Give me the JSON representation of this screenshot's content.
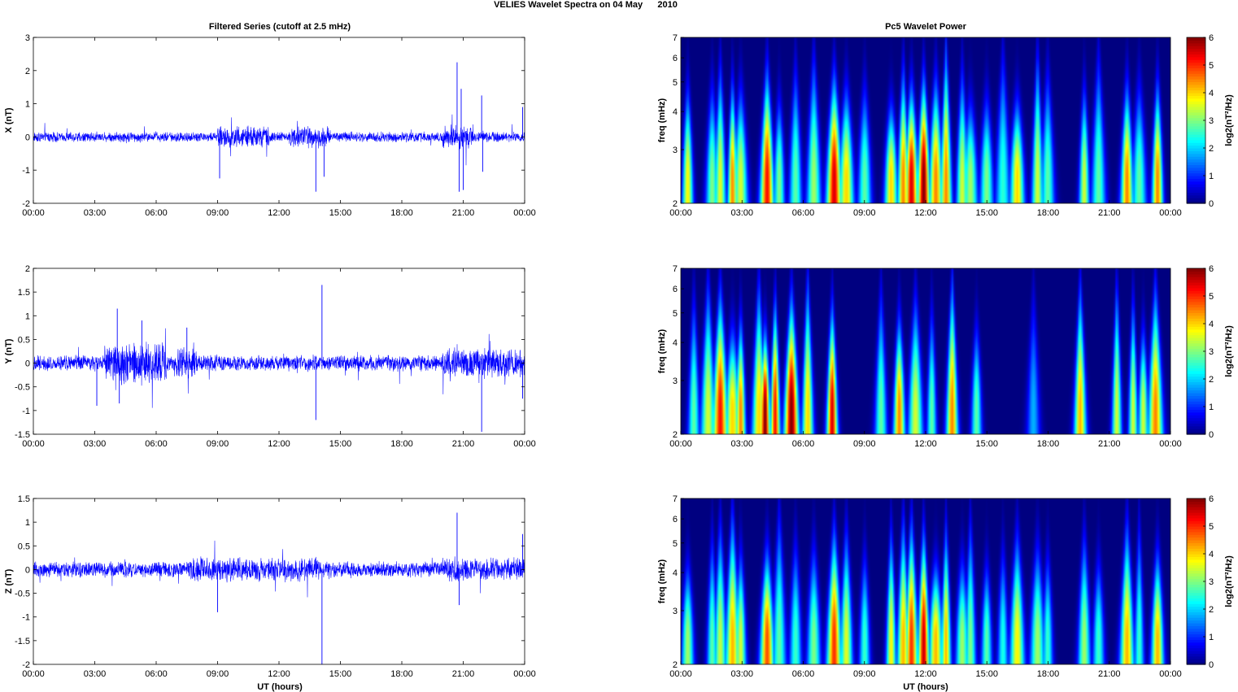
{
  "figure": {
    "suptitle": "VELIES Wavelet Spectra on 04 May      2010",
    "left_title": "Filtered Series (cutoff at 2.5 mHz)",
    "right_title": "Pc5 Wavelet Power",
    "xlabel": "UT (hours)"
  },
  "colors": {
    "trace": "#0000ff",
    "axes": "#000000",
    "background": "#ffffff",
    "jet_low": "#00007f",
    "jet_high": "#7f0000"
  },
  "chart_data": [
    {
      "type": "line",
      "id": "x-series",
      "ylabel": "X (nT)",
      "ylim": [
        -2,
        3
      ],
      "yticks": [
        "-2",
        "-1",
        "0",
        "1",
        "2",
        "3"
      ],
      "xlim": [
        0,
        24
      ],
      "xticks": [
        "00:00",
        "03:00",
        "06:00",
        "09:00",
        "12:00",
        "15:00",
        "18:00",
        "21:00",
        "00:00"
      ],
      "noise": {
        "base": 0.12,
        "bursts": [
          [
            9,
            11.5,
            0.25
          ],
          [
            12.5,
            14.5,
            0.25
          ],
          [
            20,
            21.5,
            0.3
          ]
        ]
      },
      "spikes": [
        [
          9.1,
          -1.25
        ],
        [
          13.8,
          -1.65
        ],
        [
          14.2,
          -1.2
        ],
        [
          20.7,
          2.25
        ],
        [
          20.8,
          -1.65
        ],
        [
          20.9,
          1.45
        ],
        [
          21.0,
          -1.6
        ],
        [
          21.9,
          1.25
        ],
        [
          21.95,
          -1.05
        ],
        [
          23.9,
          0.9
        ]
      ]
    },
    {
      "type": "line",
      "id": "y-series",
      "ylabel": "Y (nT)",
      "ylim": [
        -1.5,
        2
      ],
      "yticks": [
        "-1.5",
        "-1",
        "-0.5",
        "0",
        "0.5",
        "1",
        "1.5",
        "2"
      ],
      "xlim": [
        0,
        24
      ],
      "xticks": [
        "00:00",
        "03:00",
        "06:00",
        "09:00",
        "12:00",
        "15:00",
        "18:00",
        "21:00",
        "00:00"
      ],
      "noise": {
        "base": 0.13,
        "bursts": [
          [
            3.5,
            6.5,
            0.35
          ],
          [
            7,
            8,
            0.25
          ],
          [
            20,
            24,
            0.25
          ]
        ]
      },
      "spikes": [
        [
          3.1,
          -0.9
        ],
        [
          4.1,
          1.15
        ],
        [
          4.2,
          -0.85
        ],
        [
          5.3,
          0.9
        ],
        [
          7.5,
          0.75
        ],
        [
          13.8,
          -1.2
        ],
        [
          14.1,
          1.65
        ],
        [
          21.9,
          -1.45
        ],
        [
          23.9,
          -0.75
        ]
      ]
    },
    {
      "type": "line",
      "id": "z-series",
      "ylabel": "Z (nT)",
      "ylim": [
        -2,
        1.5
      ],
      "yticks": [
        "-2",
        "-1.5",
        "-1",
        "-0.5",
        "0",
        "0.5",
        "1",
        "1.5"
      ],
      "xlim": [
        0,
        24
      ],
      "xticks": [
        "00:00",
        "03:00",
        "06:00",
        "09:00",
        "12:00",
        "15:00",
        "18:00",
        "21:00",
        "00:00"
      ],
      "noise": {
        "base": 0.13,
        "bursts": [
          [
            7.5,
            14,
            0.2
          ],
          [
            20,
            24,
            0.2
          ]
        ]
      },
      "spikes": [
        [
          9.0,
          -0.9
        ],
        [
          14.1,
          -2.0
        ],
        [
          20.7,
          1.2
        ],
        [
          20.8,
          -0.75
        ],
        [
          23.9,
          0.75
        ]
      ]
    },
    {
      "type": "heatmap",
      "id": "x-wavelet",
      "ylabel": "freq (mHz)",
      "yscale": "log",
      "ylim": [
        2,
        7
      ],
      "yticks": [
        "2",
        "3",
        "4",
        "5",
        "6",
        "7"
      ],
      "xticks": [
        "00:00",
        "03:00",
        "06:00",
        "09:00",
        "12:00",
        "15:00",
        "18:00",
        "21:00",
        "00:00"
      ],
      "colorbar_label": "log2(nT²/Hz)",
      "colorbar_ticks": [
        "0",
        "1",
        "2",
        "3",
        "4",
        "5",
        "6"
      ],
      "clim": [
        0,
        6
      ],
      "blobs": [
        [
          0.3,
          3.8
        ],
        [
          1.5,
          3.0
        ],
        [
          1.9,
          3.6
        ],
        [
          2.5,
          4.5
        ],
        [
          2.9,
          3.5
        ],
        [
          4.2,
          5.2
        ],
        [
          4.8,
          3.0
        ],
        [
          5.6,
          2.8
        ],
        [
          6.5,
          3.2
        ],
        [
          7.5,
          5.5
        ],
        [
          8.1,
          4.0
        ],
        [
          9.0,
          2.8
        ],
        [
          10.3,
          4.0
        ],
        [
          10.9,
          4.5
        ],
        [
          11.3,
          5.5
        ],
        [
          11.9,
          6.0
        ],
        [
          12.5,
          4.5
        ],
        [
          13.0,
          4.5
        ],
        [
          13.8,
          3.5
        ],
        [
          14.2,
          3.2
        ],
        [
          15.0,
          3.0
        ],
        [
          15.8,
          2.5
        ],
        [
          16.5,
          4.0
        ],
        [
          17.5,
          3.5
        ],
        [
          18.0,
          2.8
        ],
        [
          19.8,
          3.5
        ],
        [
          20.5,
          2.8
        ],
        [
          21.9,
          4.5
        ],
        [
          22.5,
          2.8
        ],
        [
          23.4,
          4.5
        ]
      ]
    },
    {
      "type": "heatmap",
      "id": "y-wavelet",
      "ylabel": "freq (mHz)",
      "yscale": "log",
      "ylim": [
        2,
        7
      ],
      "yticks": [
        "2",
        "3",
        "4",
        "5",
        "6",
        "7"
      ],
      "xticks": [
        "00:00",
        "03:00",
        "06:00",
        "09:00",
        "12:00",
        "15:00",
        "18:00",
        "21:00",
        "00:00"
      ],
      "colorbar_label": "log2(nT²/Hz)",
      "colorbar_ticks": [
        "0",
        "1",
        "2",
        "3",
        "4",
        "5",
        "6"
      ],
      "clim": [
        0,
        6
      ],
      "blobs": [
        [
          0.6,
          2.8
        ],
        [
          1.3,
          3.5
        ],
        [
          1.9,
          5.2
        ],
        [
          2.5,
          4.0
        ],
        [
          2.9,
          4.5
        ],
        [
          3.8,
          4.0
        ],
        [
          4.1,
          6.0
        ],
        [
          4.6,
          5.2
        ],
        [
          5.4,
          6.0
        ],
        [
          6.2,
          4.0
        ],
        [
          7.4,
          5.5
        ],
        [
          9.8,
          2.8
        ],
        [
          10.7,
          4.5
        ],
        [
          11.5,
          3.5
        ],
        [
          12.3,
          2.8
        ],
        [
          13.3,
          4.5
        ],
        [
          14.5,
          2.8
        ],
        [
          17.3,
          1.8
        ],
        [
          19.6,
          4.2
        ],
        [
          21.4,
          3.5
        ],
        [
          22.2,
          3.5
        ],
        [
          22.7,
          3.5
        ],
        [
          23.3,
          4.5
        ]
      ]
    },
    {
      "type": "heatmap",
      "id": "z-wavelet",
      "ylabel": "freq (mHz)",
      "yscale": "log",
      "ylim": [
        2,
        7
      ],
      "yticks": [
        "2",
        "3",
        "4",
        "5",
        "6",
        "7"
      ],
      "xticks": [
        "00:00",
        "03:00",
        "06:00",
        "09:00",
        "12:00",
        "15:00",
        "18:00",
        "21:00",
        "00:00"
      ],
      "colorbar_label": "log2(nT²/Hz)",
      "colorbar_ticks": [
        "0",
        "1",
        "2",
        "3",
        "4",
        "5",
        "6"
      ],
      "clim": [
        0,
        6
      ],
      "blobs": [
        [
          0.3,
          3.2
        ],
        [
          1.5,
          2.8
        ],
        [
          1.9,
          3.4
        ],
        [
          2.5,
          4.2
        ],
        [
          2.9,
          3.5
        ],
        [
          4.2,
          4.8
        ],
        [
          4.8,
          2.8
        ],
        [
          5.6,
          2.6
        ],
        [
          6.5,
          3.0
        ],
        [
          7.5,
          5.0
        ],
        [
          8.1,
          3.6
        ],
        [
          9.0,
          2.6
        ],
        [
          10.3,
          3.8
        ],
        [
          10.9,
          4.2
        ],
        [
          11.3,
          5.0
        ],
        [
          11.9,
          5.6
        ],
        [
          12.5,
          4.2
        ],
        [
          13.0,
          4.2
        ],
        [
          13.8,
          3.2
        ],
        [
          14.2,
          3.0
        ],
        [
          15.0,
          2.8
        ],
        [
          15.8,
          2.4
        ],
        [
          16.5,
          3.8
        ],
        [
          17.5,
          3.2
        ],
        [
          18.0,
          2.6
        ],
        [
          19.8,
          3.2
        ],
        [
          20.5,
          2.6
        ],
        [
          21.9,
          4.2
        ],
        [
          22.5,
          2.6
        ],
        [
          23.4,
          4.2
        ]
      ]
    }
  ]
}
